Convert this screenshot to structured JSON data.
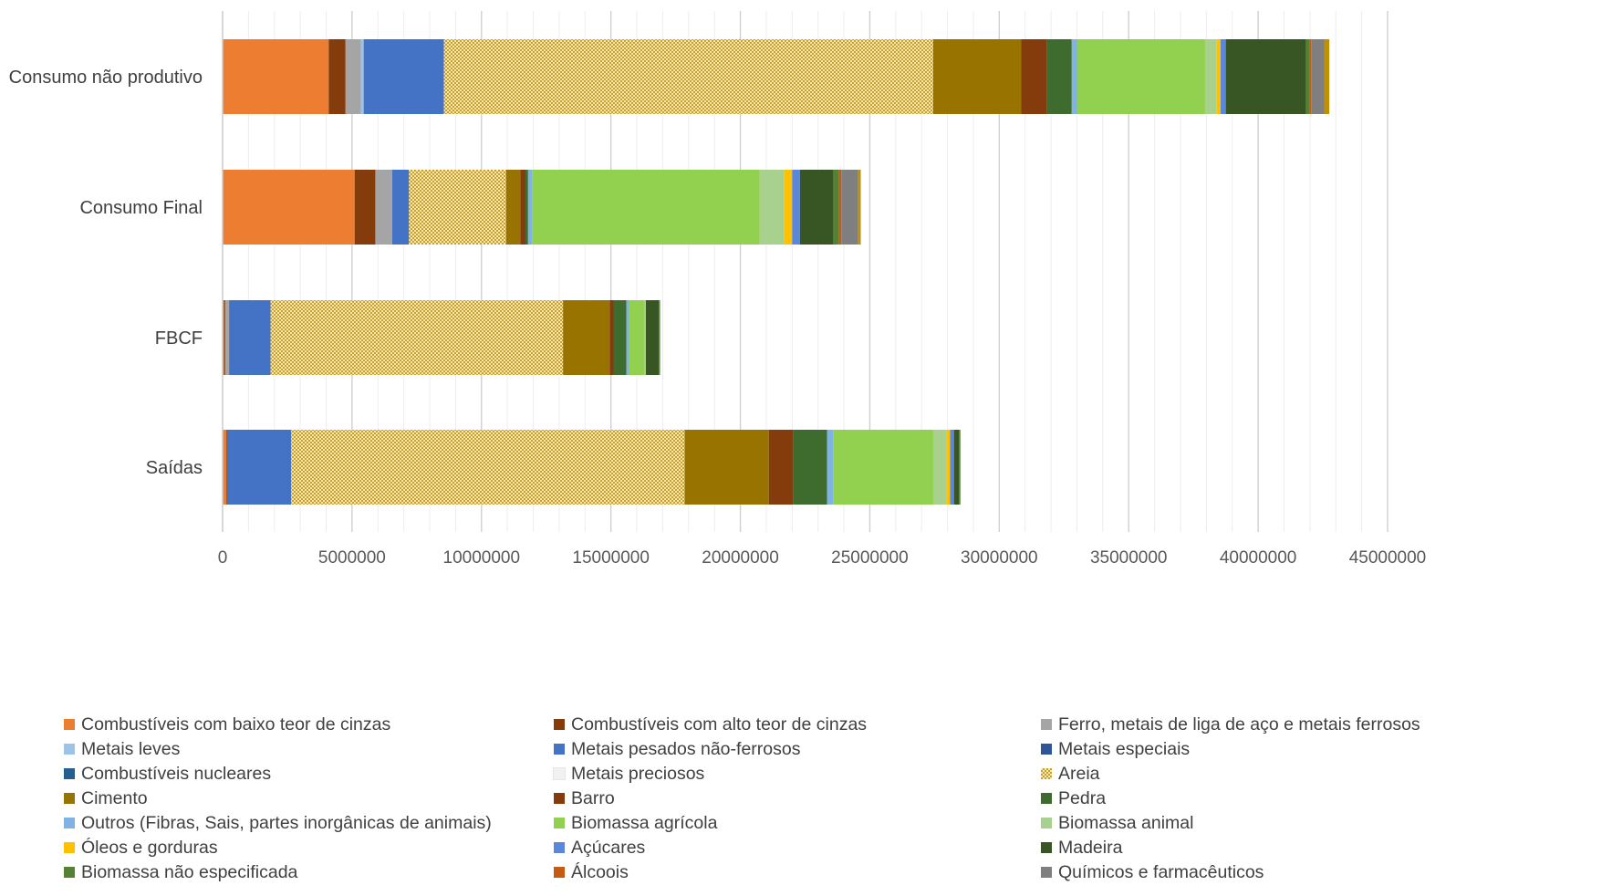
{
  "chart_data": {
    "type": "bar",
    "orientation": "horizontal",
    "stacked": true,
    "title": "",
    "xlabel": "",
    "ylabel": "",
    "xlim": [
      0,
      45000000
    ],
    "x_ticks": [
      "0",
      "5000000",
      "10000000",
      "15000000",
      "20000000",
      "25000000",
      "30000000",
      "35000000",
      "40000000",
      "45000000"
    ],
    "grid": "vertical",
    "legend_position": "bottom",
    "categories": [
      "Consumo não produtivo",
      "Consumo Final",
      "FBCF",
      "Saídas"
    ],
    "series": [
      {
        "name": "Combustíveis com baixo teor de cinzas",
        "color": "#ED7D31",
        "values": [
          4100000,
          5100000,
          50000,
          150000
        ]
      },
      {
        "name": "Combustíveis com alto teor de cinzas",
        "color": "#843C0C",
        "values": [
          650000,
          800000,
          50000,
          50000
        ]
      },
      {
        "name": "Ferro, metais de liga de aço e metais ferrosos",
        "color": "#A5A5A5",
        "values": [
          600000,
          650000,
          150000,
          0
        ]
      },
      {
        "name": "Metais leves",
        "color": "#9DC3E6",
        "values": [
          100000,
          0,
          0,
          0
        ]
      },
      {
        "name": "Metais pesados não-ferrosos",
        "color": "#4472C4",
        "values": [
          3100000,
          650000,
          1600000,
          2450000
        ]
      },
      {
        "name": "Metais especiais",
        "color": "#2F5597",
        "values": [
          0,
          0,
          0,
          0
        ]
      },
      {
        "name": "Combustíveis nucleares",
        "color": "#255E91",
        "values": [
          0,
          0,
          0,
          0
        ]
      },
      {
        "name": "Metais preciosos",
        "color": "#F2F2F2",
        "values": [
          0,
          0,
          0,
          0
        ]
      },
      {
        "name": "Areia",
        "color": "#C9A227",
        "pattern": "checker",
        "values": [
          18900000,
          3750000,
          11300000,
          15200000
        ]
      },
      {
        "name": "Cimento",
        "color": "#997300",
        "values": [
          3400000,
          550000,
          1800000,
          3250000
        ]
      },
      {
        "name": "Barro",
        "color": "#843C0C",
        "values": [
          1000000,
          200000,
          150000,
          950000
        ]
      },
      {
        "name": "Pedra",
        "color": "#3E6B2E",
        "values": [
          950000,
          100000,
          500000,
          1300000
        ]
      },
      {
        "name": "Outros (Fibras, Sais, partes inorgânicas de animais)",
        "color": "#7FB2E5",
        "values": [
          200000,
          150000,
          100000,
          250000
        ]
      },
      {
        "name": "Biomassa agrícola",
        "color": "#92D050",
        "values": [
          4950000,
          8800000,
          600000,
          3850000
        ]
      },
      {
        "name": "Biomassa animal",
        "color": "#A9D18E",
        "values": [
          450000,
          950000,
          50000,
          500000
        ]
      },
      {
        "name": "Óleos e gorduras",
        "color": "#FFC000",
        "values": [
          150000,
          300000,
          0,
          150000
        ]
      },
      {
        "name": "Açúcares",
        "color": "#5B87DA",
        "values": [
          200000,
          300000,
          0,
          150000
        ]
      },
      {
        "name": "Madeira",
        "color": "#375623",
        "values": [
          3100000,
          1300000,
          500000,
          200000
        ]
      },
      {
        "name": "Biomassa não especificada",
        "color": "#548235",
        "values": [
          150000,
          200000,
          50000,
          50000
        ]
      },
      {
        "name": "Álcoois",
        "color": "#C55A11",
        "values": [
          50000,
          100000,
          0,
          0
        ]
      },
      {
        "name": "Químicos e farmacêuticos",
        "color": "#7F7F7F",
        "values": [
          500000,
          650000,
          0,
          0
        ]
      },
      {
        "name": "",
        "color": "#BF9000",
        "values": [
          200000,
          100000,
          0,
          0
        ]
      }
    ]
  },
  "legend": {
    "items": [
      {
        "label": "Combustíveis com baixo teor de cinzas",
        "color": "#ED7D31"
      },
      {
        "label": "Combustíveis com alto teor de cinzas",
        "color": "#843C0C"
      },
      {
        "label": "Ferro, metais de liga de aço e metais ferrosos",
        "color": "#A5A5A5"
      },
      {
        "label": "Metais leves",
        "color": "#9DC3E6"
      },
      {
        "label": "Metais pesados não-ferrosos",
        "color": "#4472C4"
      },
      {
        "label": "Metais especiais",
        "color": "#2F5597"
      },
      {
        "label": "Combustíveis nucleares",
        "color": "#255E91"
      },
      {
        "label": "Metais preciosos",
        "color": "#F2F2F2"
      },
      {
        "label": "Areia",
        "color": "#C9A227",
        "pattern": "checker"
      },
      {
        "label": "Cimento",
        "color": "#997300"
      },
      {
        "label": "Barro",
        "color": "#843C0C"
      },
      {
        "label": "Pedra",
        "color": "#3E6B2E"
      },
      {
        "label": "Outros (Fibras, Sais, partes inorgânicas de animais)",
        "color": "#7FB2E5"
      },
      {
        "label": "Biomassa agrícola",
        "color": "#92D050"
      },
      {
        "label": "Biomassa animal",
        "color": "#A9D18E"
      },
      {
        "label": "Óleos e gorduras",
        "color": "#FFC000"
      },
      {
        "label": "Açúcares",
        "color": "#5B87DA"
      },
      {
        "label": "Madeira",
        "color": "#375623"
      },
      {
        "label": "Biomassa não especificada",
        "color": "#548235"
      },
      {
        "label": "Álcoois",
        "color": "#C55A11"
      },
      {
        "label": "Químicos e farmacêuticos",
        "color": "#7F7F7F"
      }
    ]
  }
}
